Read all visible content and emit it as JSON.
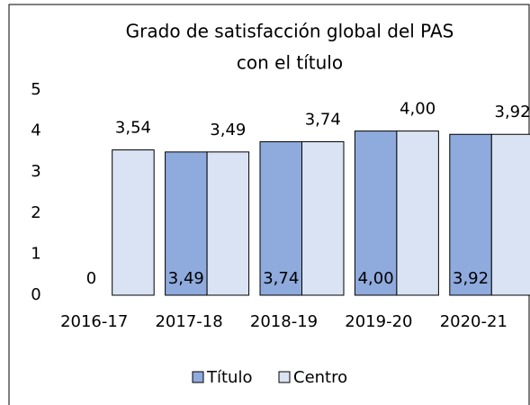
{
  "chart_data": {
    "type": "bar",
    "title": [
      "Grado de satisfacción global del PAS",
      "con el título"
    ],
    "categories": [
      "2016-17",
      "2017-18",
      "2018-19",
      "2019-20",
      "2020-21"
    ],
    "series": [
      {
        "name": "Título",
        "color": "#8faadc",
        "values": [
          0,
          3.49,
          3.74,
          4.0,
          3.92
        ],
        "value_labels": [
          "0",
          "3,49",
          "3,74",
          "4,00",
          "3,92"
        ]
      },
      {
        "name": "Centro",
        "color": "#dae3f3",
        "values": [
          3.54,
          3.49,
          3.74,
          4.0,
          3.92
        ],
        "value_labels": [
          "3,54",
          "3,49",
          "3,74",
          "4,00",
          "3,92"
        ]
      }
    ],
    "ylim": [
      0,
      5
    ],
    "yticks": [
      0,
      1,
      2,
      3,
      4,
      5
    ],
    "legend": "bottom"
  }
}
